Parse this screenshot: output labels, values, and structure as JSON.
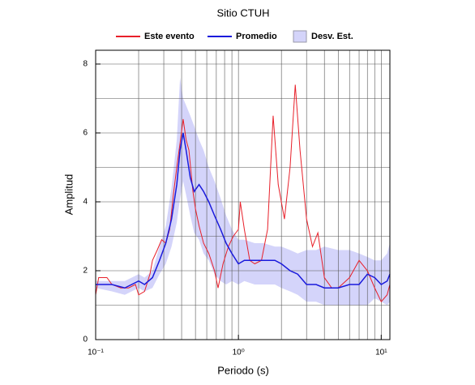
{
  "chart_data": {
    "type": "line",
    "title": "Sitio CTUH",
    "xlabel": "Periodo (s)",
    "ylabel": "Amplitud",
    "xscale": "log",
    "xlim": [
      0.1,
      11.5
    ],
    "ylim": [
      0,
      8.4
    ],
    "xticks": [
      {
        "value": 0.1,
        "label": "10⁻¹"
      },
      {
        "value": 1,
        "label": "10⁰"
      },
      {
        "value": 10,
        "label": "10¹"
      }
    ],
    "yticks": [
      0,
      2,
      4,
      6,
      8
    ],
    "xgrid": [
      0.2,
      0.3,
      0.4,
      0.5,
      0.6,
      0.7,
      0.8,
      0.9,
      1,
      2,
      3,
      4,
      5,
      6,
      7,
      8,
      9,
      10
    ],
    "ygrid": [
      1,
      2,
      3,
      4,
      5,
      6,
      7,
      8
    ],
    "legend": "top",
    "series": [
      {
        "name": "Este evento",
        "color": "#e8202a",
        "x": [
          0.1,
          0.105,
          0.12,
          0.13,
          0.15,
          0.17,
          0.19,
          0.2,
          0.22,
          0.24,
          0.25,
          0.27,
          0.29,
          0.31,
          0.33,
          0.35,
          0.37,
          0.39,
          0.41,
          0.43,
          0.45,
          0.48,
          0.5,
          0.53,
          0.57,
          0.62,
          0.68,
          0.72,
          0.78,
          0.85,
          0.92,
          1.0,
          1.03,
          1.1,
          1.2,
          1.3,
          1.45,
          1.6,
          1.75,
          1.9,
          2.1,
          2.3,
          2.5,
          2.7,
          3.0,
          3.3,
          3.6,
          4.0,
          4.5,
          5,
          6,
          7,
          8,
          9,
          10,
          11,
          11.5
        ],
        "values": [
          1.3,
          1.8,
          1.8,
          1.6,
          1.5,
          1.5,
          1.6,
          1.3,
          1.4,
          1.9,
          2.3,
          2.6,
          2.9,
          2.8,
          3.2,
          4.2,
          5.0,
          5.7,
          6.4,
          5.8,
          5.5,
          4.3,
          3.8,
          3.3,
          2.8,
          2.5,
          2.0,
          1.5,
          2.2,
          2.7,
          3.0,
          3.2,
          4.0,
          3.2,
          2.3,
          2.2,
          2.3,
          3.2,
          6.5,
          4.5,
          3.5,
          5.0,
          7.4,
          5.5,
          3.5,
          2.7,
          3.1,
          1.8,
          1.5,
          1.5,
          1.8,
          2.3,
          2.0,
          1.5,
          1.1,
          1.3,
          1.6
        ]
      },
      {
        "name": "Promedio",
        "color": "#1a1adc",
        "x": [
          0.1,
          0.13,
          0.16,
          0.2,
          0.22,
          0.25,
          0.28,
          0.31,
          0.34,
          0.37,
          0.39,
          0.41,
          0.43,
          0.46,
          0.49,
          0.53,
          0.57,
          0.62,
          0.68,
          0.75,
          0.82,
          0.9,
          1.0,
          1.1,
          1.3,
          1.5,
          1.8,
          2.0,
          2.3,
          2.6,
          3.0,
          3.5,
          4.0,
          5,
          6,
          7,
          8,
          9,
          10,
          11,
          11.5
        ],
        "values": [
          1.6,
          1.6,
          1.5,
          1.7,
          1.6,
          1.8,
          2.3,
          2.8,
          3.5,
          4.5,
          5.5,
          6.0,
          5.5,
          4.7,
          4.3,
          4.5,
          4.3,
          4.0,
          3.6,
          3.2,
          2.8,
          2.5,
          2.2,
          2.3,
          2.3,
          2.3,
          2.3,
          2.2,
          2.0,
          1.9,
          1.6,
          1.6,
          1.5,
          1.5,
          1.6,
          1.6,
          1.9,
          1.8,
          1.6,
          1.7,
          1.9
        ]
      },
      {
        "name": "Desv. Est.",
        "color": "#d4d4fa",
        "x": [
          0.1,
          0.13,
          0.16,
          0.2,
          0.22,
          0.25,
          0.28,
          0.31,
          0.34,
          0.37,
          0.39,
          0.41,
          0.43,
          0.46,
          0.49,
          0.53,
          0.57,
          0.62,
          0.68,
          0.75,
          0.82,
          0.9,
          1.0,
          1.1,
          1.3,
          1.5,
          1.8,
          2.0,
          2.3,
          2.6,
          3.0,
          3.5,
          4.0,
          5,
          6,
          7,
          8,
          9,
          10,
          11,
          11.5
        ],
        "upper": [
          1.7,
          1.7,
          1.7,
          1.9,
          1.8,
          2.0,
          2.7,
          3.3,
          4.4,
          5.8,
          7.6,
          7.0,
          6.8,
          6.5,
          6.2,
          5.8,
          5.5,
          5.0,
          4.6,
          4.1,
          3.6,
          3.2,
          2.9,
          2.9,
          2.8,
          2.8,
          2.7,
          2.7,
          2.6,
          2.5,
          2.6,
          2.6,
          2.7,
          2.6,
          2.6,
          2.5,
          2.4,
          2.3,
          2.3,
          2.5,
          2.8
        ],
        "lower": [
          1.5,
          1.4,
          1.3,
          1.5,
          1.4,
          1.5,
          1.9,
          2.2,
          2.7,
          3.4,
          4.1,
          4.6,
          4.2,
          3.6,
          3.1,
          2.9,
          2.5,
          2.3,
          1.9,
          1.7,
          1.6,
          1.7,
          1.6,
          1.7,
          1.6,
          1.6,
          1.6,
          1.5,
          1.4,
          1.3,
          1.1,
          1.1,
          1.0,
          1.0,
          1.0,
          1.0,
          1.0,
          1.2,
          1.1,
          1.0,
          1.1
        ]
      }
    ]
  }
}
